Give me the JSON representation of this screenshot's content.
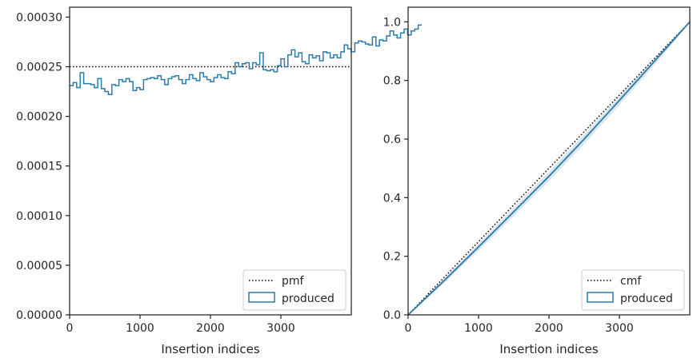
{
  "chart_data": [
    {
      "type": "line",
      "subtype": "step-histogram",
      "xlabel": "Insertion indices",
      "ylabel": "",
      "title": "",
      "xlim": [
        0,
        4000
      ],
      "ylim": [
        0,
        0.00031
      ],
      "xticks": [
        0,
        1000,
        2000,
        3000
      ],
      "xtick_labels": [
        "0",
        "1000",
        "2000",
        "3000"
      ],
      "yticks": [
        0,
        5e-05,
        0.0001,
        0.00015,
        0.0002,
        0.00025,
        0.0003
      ],
      "ytick_labels": [
        "0.00000",
        "0.00005",
        "0.00010",
        "0.00015",
        "0.00020",
        "0.00025",
        "0.00030"
      ],
      "grid": false,
      "legend_position": "bottom-right",
      "series": [
        {
          "name": "pmf",
          "style": "dotted",
          "color": "#000000",
          "x": [
            0,
            4000
          ],
          "y": [
            0.00025,
            0.00025
          ]
        },
        {
          "name": "produced",
          "style": "step",
          "color": "#2b7bab",
          "bin_width": 50,
          "bin_start": 0,
          "values": [
            0.000231,
            0.000234,
            0.000229,
            0.000244,
            0.000233,
            0.000233,
            0.000232,
            0.000229,
            0.000238,
            0.000228,
            0.000225,
            0.000222,
            0.000232,
            0.000231,
            0.000237,
            0.000235,
            0.000238,
            0.000235,
            0.000226,
            0.000229,
            0.000227,
            0.000237,
            0.000238,
            0.000239,
            0.000238,
            0.000241,
            0.000237,
            0.000232,
            0.000238,
            0.00024,
            0.000241,
            0.000237,
            0.000233,
            0.000237,
            0.000242,
            0.000238,
            0.000236,
            0.000244,
            0.00024,
            0.000237,
            0.000235,
            0.000239,
            0.000242,
            0.000239,
            0.000238,
            0.000245,
            0.000243,
            0.000254,
            0.00025,
            0.000253,
            0.000254,
            0.000248,
            0.000254,
            0.000252,
            0.000264,
            0.000247,
            0.000246,
            0.000247,
            0.000245,
            0.000251,
            0.000258,
            0.00025,
            0.000262,
            0.000267,
            0.00026,
            0.000264,
            0.000255,
            0.000253,
            0.000262,
            0.000259,
            0.000261,
            0.000256,
            0.000265,
            0.000264,
            0.000259,
            0.000262,
            0.000259,
            0.000265,
            0.000272,
            0.000268,
            0.000265,
            0.000274,
            0.000276,
            0.000275,
            0.000273,
            0.000272,
            0.00028,
            0.000271,
            0.000277,
            0.000276,
            0.000281,
            0.000286,
            0.000282,
            0.000279,
            0.000284,
            0.000288,
            0.000282,
            0.000286,
            0.000288,
            0.000292
          ]
        }
      ]
    },
    {
      "type": "line",
      "subtype": "step-cumulative",
      "xlabel": "Insertion indices",
      "ylabel": "",
      "title": "",
      "xlim": [
        0,
        4000
      ],
      "ylim": [
        0,
        1.05
      ],
      "xticks": [
        0,
        1000,
        2000,
        3000
      ],
      "xtick_labels": [
        "0",
        "1000",
        "2000",
        "3000"
      ],
      "yticks": [
        0,
        0.2,
        0.4,
        0.6,
        0.8,
        1.0
      ],
      "ytick_labels": [
        "0.0",
        "0.2",
        "0.4",
        "0.6",
        "0.8",
        "1.0"
      ],
      "grid": false,
      "legend_position": "bottom-right",
      "series": [
        {
          "name": "cmf",
          "style": "dotted",
          "color": "#000000",
          "x": [
            0,
            4000
          ],
          "y": [
            0,
            1.0
          ]
        },
        {
          "name": "produced",
          "style": "step",
          "color": "#2b7bab",
          "band_color": "#9ab8d3",
          "x": [
            0,
            500,
            1000,
            1500,
            2000,
            2500,
            3000,
            3500,
            4000
          ],
          "y": [
            0,
            0.114,
            0.232,
            0.352,
            0.473,
            0.6,
            0.732,
            0.866,
            1.0
          ],
          "y_low": [
            0,
            0.106,
            0.22,
            0.337,
            0.456,
            0.583,
            0.716,
            0.853,
            1.0
          ],
          "y_high": [
            0,
            0.121,
            0.243,
            0.366,
            0.489,
            0.616,
            0.747,
            0.878,
            1.0
          ]
        }
      ]
    }
  ]
}
